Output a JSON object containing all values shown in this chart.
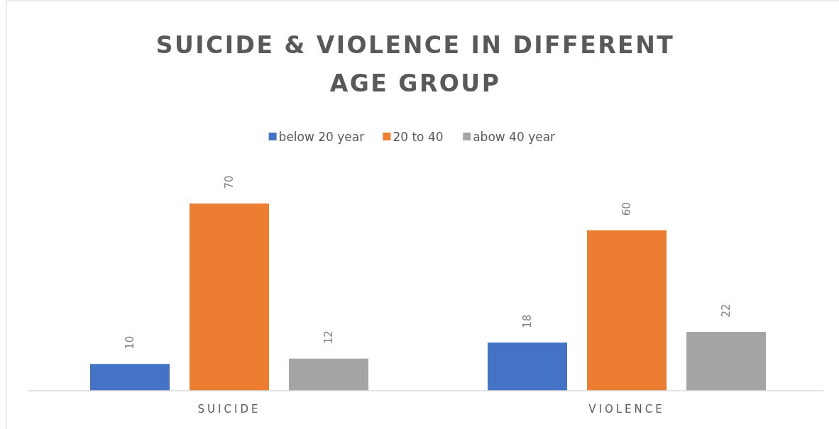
{
  "chart_data": {
    "type": "bar",
    "title": "SUICIDE & VIOLENCE IN DIFFERENT AGE GROUP",
    "categories": [
      "SUICIDE",
      "VIOLENCE"
    ],
    "series": [
      {
        "name": "below 20 year",
        "color": "#4472c4",
        "values": [
          10,
          18
        ]
      },
      {
        "name": "20 to 40",
        "color": "#ed7d31",
        "values": [
          70,
          60
        ]
      },
      {
        "name": "abow 40 year",
        "color": "#a5a5a5",
        "values": [
          12,
          22
        ]
      }
    ],
    "data_labels": true,
    "legend": "top"
  }
}
